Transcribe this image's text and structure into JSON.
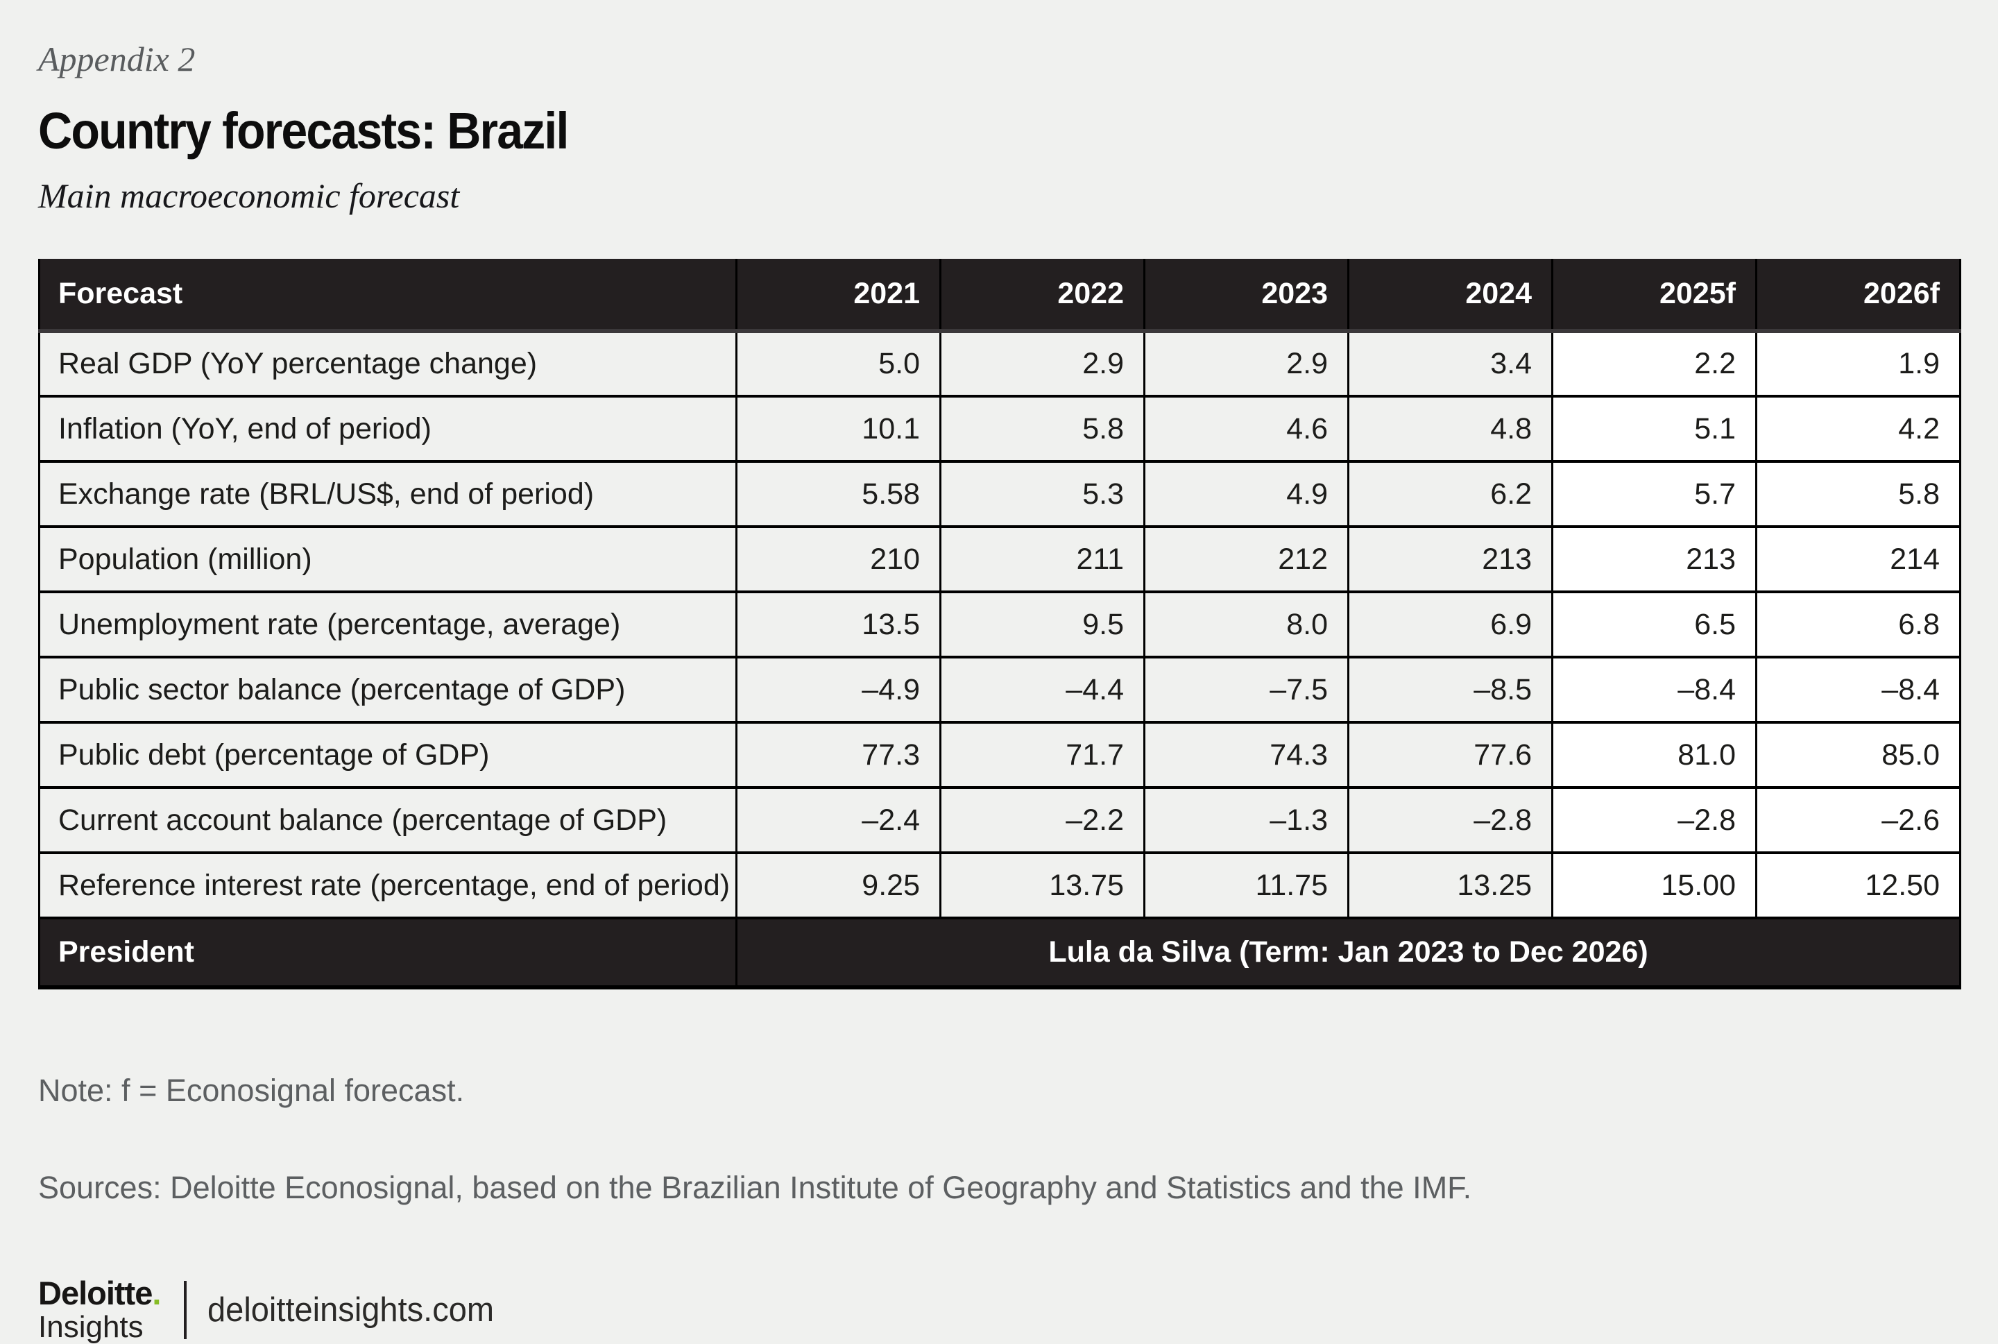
{
  "page": {
    "appendix_label": "Appendix 2",
    "title": "Country forecasts: Brazil",
    "subtitle": "Main macroeconomic forecast",
    "note": "Note: f = Econosignal forecast.",
    "sources": "Sources: Deloitte Econosignal, based on the Brazilian Institute of Geography and Statistics and the IMF.",
    "colors": {
      "background": "#f0f1ef",
      "table_dark": "#231f20",
      "forecast_column_bg": "#ffffff",
      "deloitte_green": "#86bc25",
      "muted_text": "#5c5f61"
    }
  },
  "table": {
    "header": [
      "Forecast",
      "2021",
      "2022",
      "2023",
      "2024",
      "2025f",
      "2026f"
    ],
    "rows": [
      {
        "label": "Real GDP (YoY percentage change)",
        "values": [
          "5.0",
          "2.9",
          "2.9",
          "3.4",
          "2.2",
          "1.9"
        ]
      },
      {
        "label": "Inflation (YoY, end of period)",
        "values": [
          "10.1",
          "5.8",
          "4.6",
          "4.8",
          "5.1",
          "4.2"
        ]
      },
      {
        "label": "Exchange rate (BRL/US$, end of period)",
        "values": [
          "5.58",
          "5.3",
          "4.9",
          "6.2",
          "5.7",
          "5.8"
        ]
      },
      {
        "label": "Population (million)",
        "values": [
          "210",
          "211",
          "212",
          "213",
          "213",
          "214"
        ]
      },
      {
        "label": "Unemployment rate (percentage, average)",
        "values": [
          "13.5",
          "9.5",
          "8.0",
          "6.9",
          "6.5",
          "6.8"
        ]
      },
      {
        "label": "Public sector balance (percentage of GDP)",
        "values": [
          "–4.9",
          "–4.4",
          "–7.5",
          "–8.5",
          "–8.4",
          "–8.4"
        ]
      },
      {
        "label": "Public debt (percentage of GDP)",
        "values": [
          "77.3",
          "71.7",
          "74.3",
          "77.6",
          "81.0",
          "85.0"
        ]
      },
      {
        "label": "Current account balance (percentage of GDP)",
        "values": [
          "–2.4",
          "–2.2",
          "–1.3",
          "–2.8",
          "–2.8",
          "–2.6"
        ]
      },
      {
        "label": "Reference interest rate (percentage, end of period)",
        "values": [
          "9.25",
          "13.75",
          "11.75",
          "13.25",
          "15.00",
          "12.50"
        ]
      }
    ],
    "footer_row": {
      "label": "President",
      "value": "Lula da Silva (Term: Jan 2023 to Dec 2026)"
    }
  },
  "logo": {
    "brand_top": "Deloitte",
    "brand_dot": ".",
    "brand_bottom": "Insights",
    "site": "deloitteinsights.com"
  }
}
